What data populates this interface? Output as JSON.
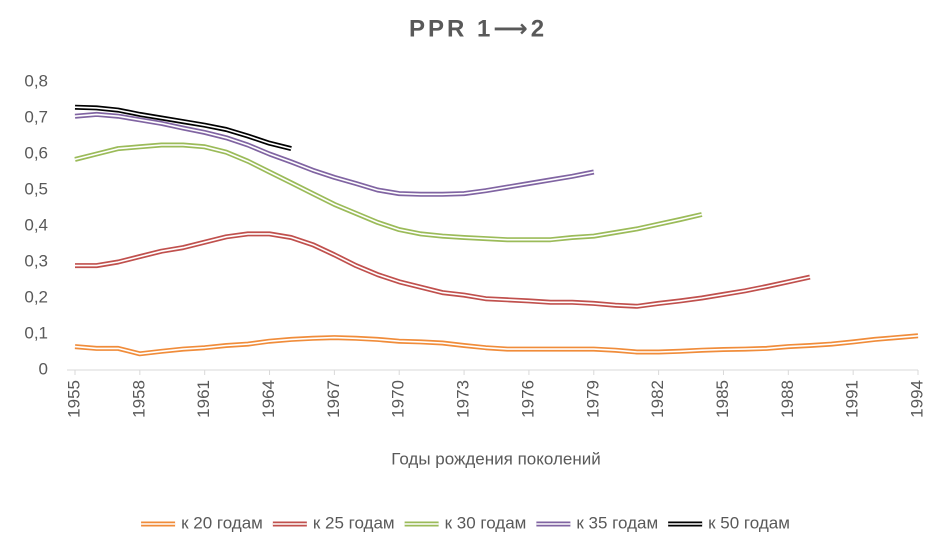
{
  "chart_data": {
    "type": "line",
    "title": "PPR 1⟶2",
    "x_label": "Годы рождения поколений",
    "x": [
      1955,
      1956,
      1957,
      1958,
      1959,
      1960,
      1961,
      1962,
      1963,
      1964,
      1965,
      1966,
      1967,
      1968,
      1969,
      1970,
      1971,
      1972,
      1973,
      1974,
      1975,
      1976,
      1977,
      1978,
      1979,
      1980,
      1981,
      1982,
      1983,
      1984,
      1985,
      1986,
      1987,
      1988,
      1989,
      1990,
      1991,
      1992,
      1993,
      1994
    ],
    "xlim": [
      1955,
      1994
    ],
    "xticks": [
      1955,
      1958,
      1961,
      1964,
      1967,
      1970,
      1973,
      1976,
      1979,
      1982,
      1985,
      1988,
      1991,
      1994
    ],
    "ylim": [
      0,
      0.8
    ],
    "yticks": [
      0,
      {
        "value": 0.1,
        "label": "0,1"
      },
      {
        "value": 0.2,
        "label": "0,2"
      },
      {
        "value": 0.3,
        "label": "0,3"
      },
      {
        "value": 0.4,
        "label": "0,4"
      },
      {
        "value": 0.5,
        "label": "0,5"
      },
      {
        "value": 0.6,
        "label": "0,6"
      },
      {
        "value": 0.7,
        "label": "0,7"
      },
      {
        "value": 0.8,
        "label": "0,8"
      }
    ],
    "grid": false,
    "legend": "bottom",
    "series": [
      {
        "name": "к 20 годам",
        "color": "#f08c3a",
        "values": [
          0.065,
          0.06,
          0.06,
          0.045,
          0.052,
          0.058,
          0.062,
          0.068,
          0.072,
          0.08,
          0.085,
          0.088,
          0.09,
          0.088,
          0.085,
          0.08,
          0.078,
          0.075,
          0.068,
          0.062,
          0.058,
          0.058,
          0.058,
          0.058,
          0.058,
          0.055,
          0.05,
          0.05,
          0.052,
          0.055,
          0.057,
          0.058,
          0.06,
          0.065,
          0.068,
          0.072,
          0.078,
          0.085,
          0.09,
          0.095
        ]
      },
      {
        "name": "к 25 годам",
        "color": "#c0504d",
        "values": [
          0.29,
          0.29,
          0.3,
          0.315,
          0.33,
          0.34,
          0.355,
          0.37,
          0.378,
          0.378,
          0.368,
          0.348,
          0.32,
          0.29,
          0.265,
          0.245,
          0.23,
          0.215,
          0.208,
          0.198,
          0.195,
          0.192,
          0.188,
          0.188,
          0.185,
          0.18,
          0.177,
          0.185,
          0.192,
          0.2,
          0.21,
          0.22,
          0.232,
          0.245,
          0.258,
          null,
          null,
          null,
          null,
          null
        ]
      },
      {
        "name": "к 30 годам",
        "color": "#9bbb59",
        "values": [
          0.585,
          0.6,
          0.615,
          0.62,
          0.625,
          0.625,
          0.62,
          0.605,
          0.58,
          0.55,
          0.52,
          0.49,
          0.46,
          0.435,
          0.41,
          0.39,
          0.378,
          0.372,
          0.368,
          0.365,
          0.362,
          0.362,
          0.362,
          0.368,
          0.372,
          0.382,
          0.392,
          0.405,
          0.418,
          0.432,
          null,
          null,
          null,
          null,
          null,
          null,
          null,
          null,
          null,
          null
        ]
      },
      {
        "name": "к 35 годам",
        "color": "#8064a2",
        "values": [
          0.705,
          0.71,
          0.705,
          0.695,
          0.685,
          0.672,
          0.66,
          0.645,
          0.625,
          0.6,
          0.578,
          0.555,
          0.535,
          0.518,
          0.5,
          0.49,
          0.488,
          0.488,
          0.49,
          0.498,
          0.508,
          0.518,
          0.528,
          0.538,
          0.55,
          null,
          null,
          null,
          null,
          null,
          null,
          null,
          null,
          null,
          null,
          null,
          null,
          null,
          null,
          null
        ]
      },
      {
        "name": "к 50 годам",
        "color": "#000000",
        "values": [
          0.73,
          0.728,
          0.722,
          0.71,
          0.7,
          0.69,
          0.68,
          0.668,
          0.65,
          0.63,
          0.615,
          null,
          null,
          null,
          null,
          null,
          null,
          null,
          null,
          null,
          null,
          null,
          null,
          null,
          null,
          null,
          null,
          null,
          null,
          null,
          null,
          null,
          null,
          null,
          null,
          null,
          null,
          null,
          null,
          null
        ]
      }
    ]
  }
}
